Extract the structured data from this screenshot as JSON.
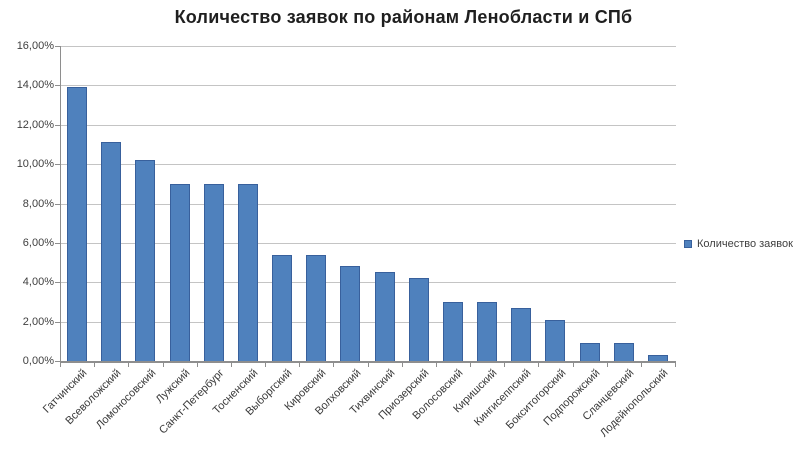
{
  "chart_data": {
    "type": "bar",
    "title": "Количество заявок по районам Ленобласти и СПб",
    "legend_label": "Количество заявок",
    "legend_position": "right",
    "grid": true,
    "categories": [
      "Гатчинский",
      "Всеволожский",
      "Ломоносовский",
      "Лужский",
      "Санкт-Петербург",
      "Тосненский",
      "Выборгский",
      "Кировский",
      "Волховский",
      "Тихвинский",
      "Приозерский",
      "Волосовский",
      "Киришский",
      "Кингисеппский",
      "Бокситогорский",
      "Подпорожский",
      "Сланцевский",
      "Лодейнопольский"
    ],
    "series": [
      {
        "name": "Количество заявок",
        "values": [
          13.9,
          11.1,
          10.2,
          9.0,
          9.0,
          9.0,
          5.4,
          5.4,
          4.8,
          4.5,
          4.2,
          3.0,
          3.0,
          2.7,
          2.1,
          0.9,
          0.9,
          0.3
        ]
      }
    ],
    "value_unit": "%",
    "ylim": [
      0,
      16
    ],
    "ytick_step": 2,
    "ytick_labels": [
      "0,00%",
      "2,00%",
      "4,00%",
      "6,00%",
      "8,00%",
      "10,00%",
      "12,00%",
      "14,00%",
      "16,00%"
    ],
    "colors": {
      "bar_fill": "#4f81bd",
      "bar_border": "#38609c",
      "gridline": "#c4c4c4",
      "axis": "#8e8e8e"
    }
  }
}
